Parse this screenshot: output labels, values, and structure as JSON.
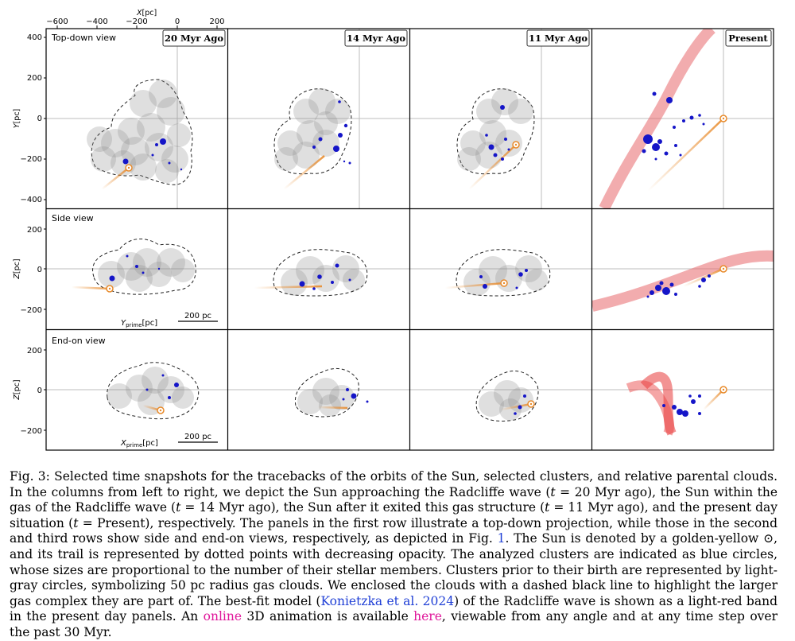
{
  "figure": {
    "top_axis": {
      "label_var": "X",
      "label_unit": "[pc]",
      "ticks": [
        "−600",
        "−400",
        "−200",
        "0",
        "200"
      ]
    },
    "y_ticks_row1": [
      "400",
      "200",
      "0",
      "−200",
      "−400"
    ],
    "y_ticks_row23": [
      "200",
      "0",
      "−200"
    ],
    "row_labels": {
      "row1": {
        "var": "Y",
        "unit": "[pc]"
      },
      "row2": {
        "var": "Z",
        "unit": "[pc]"
      },
      "row3": {
        "var": "Z",
        "unit": "[pc]"
      }
    },
    "row_titles": [
      "Top-down view",
      "Side view",
      "End-on view"
    ],
    "column_badges": [
      "20 Myr Ago",
      "14 Myr Ago",
      "11 Myr Ago",
      "Present"
    ],
    "inner_axis_labels": {
      "side": {
        "var": "Y",
        "sub": "prime",
        "unit": "[pc]"
      },
      "endon": {
        "var": "X",
        "sub": "prime",
        "unit": "[pc]"
      }
    },
    "scale_bar": "200 pc",
    "colors": {
      "cluster": "#1515c8",
      "cloud": "#9a9a9a",
      "sun": "#e88a2a",
      "wave": "#e8686b",
      "frame": "#000000"
    }
  },
  "caption": {
    "p1": "Fig. 3: Selected time snapshots for the tracebacks of the orbits of the Sun, selected clusters, and relative parental clouds. In the columns from left to right, we depict the Sun approaching the Radcliffe wave (",
    "t1": "t",
    "p2": " = 20 Myr ago), the Sun within the gas of the Radcliffe wave (",
    "t2": "t",
    "p3": " = 14 Myr ago), the Sun after it exited this gas structure (",
    "t3": "t",
    "p4": " = 11 Myr ago), and the present day situation (",
    "t4": "t",
    "p5": " = Present), respectively. The panels in the first row illustrate a top-down projection, while those in the second and third rows show side and end-on views, respectively, as depicted in Fig. ",
    "figref": "1",
    "p6": ". The Sun is denoted by a golden-yellow ⊙, and its trail is represented by dotted points with decreasing opacity. The analyzed clusters are indicated as blue circles, whose sizes are proportional to the number of their stellar members. Clusters prior to their birth are represented by light-gray circles, symbolizing 50 pc radius gas clouds. We enclosed the clouds with a dashed black line to highlight the larger gas complex they are part of. The best-fit model (",
    "cite": "Konietzka et al. 2024",
    "p7": ") of the Radcliffe wave is shown as a light-red band in the present day panels. An ",
    "link_online": "online",
    "p8": " 3D animation is available ",
    "link_here": "here",
    "p9": ", viewable from any angle and at any time step over the past 30 Myr."
  }
}
